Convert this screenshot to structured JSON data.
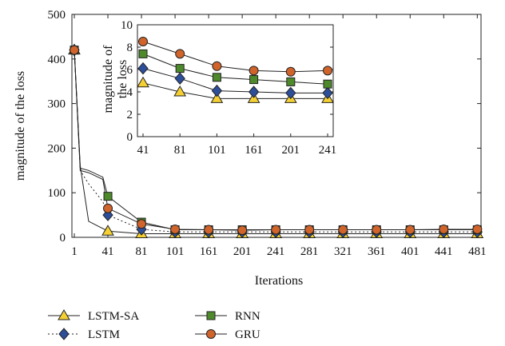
{
  "chart_data": [
    {
      "type": "line",
      "xlabel": "Iterations",
      "ylabel": "magnitude of the loss",
      "ylim": [
        0,
        500
      ],
      "yticks": [
        0,
        100,
        200,
        300,
        400,
        500
      ],
      "xticks": [
        "1",
        "41",
        "81",
        "101",
        "161",
        "201",
        "241",
        "281",
        "321",
        "361",
        "401",
        "441",
        "481"
      ],
      "grid": false,
      "legend_position": "bottom",
      "series": [
        {
          "name": "LSTM-SA",
          "marker": "triangle",
          "color": "#f5d033",
          "line_style": "solid",
          "x": [
            1,
            8,
            18,
            41,
            81,
            101,
            161,
            201,
            241,
            281,
            321,
            361,
            401,
            441,
            481
          ],
          "y": [
            420,
            160,
            36,
            14,
            8,
            8,
            8,
            8,
            8,
            8,
            8,
            8,
            8,
            8,
            8
          ],
          "marker_x": [
            1,
            41,
            81,
            101,
            161,
            201,
            241,
            281,
            321,
            361,
            401,
            441,
            481
          ],
          "marker_y": [
            420,
            14,
            8,
            8,
            8,
            8,
            8,
            8,
            8,
            8,
            8,
            8,
            8
          ]
        },
        {
          "name": "LSTM",
          "marker": "diamond",
          "color": "#2d4f9a",
          "line_style": "dotted",
          "x": [
            1,
            8,
            18,
            35,
            41,
            81,
            101,
            161,
            201,
            241,
            281,
            321,
            361,
            401,
            441,
            481
          ],
          "y": [
            420,
            150,
            120,
            80,
            50,
            18,
            12,
            12,
            12,
            12,
            12,
            12,
            12,
            12,
            12,
            12
          ],
          "marker_x": [
            1,
            41,
            81,
            101,
            161,
            201,
            241,
            281,
            321,
            361,
            401,
            441,
            481
          ],
          "marker_y": [
            420,
            50,
            18,
            12,
            12,
            12,
            12,
            12,
            12,
            12,
            12,
            12,
            12
          ]
        },
        {
          "name": "RNN",
          "marker": "square",
          "color": "#4e8a2c",
          "line_style": "solid",
          "x": [
            1,
            8,
            18,
            35,
            41,
            81,
            101,
            161,
            201,
            241,
            281,
            321,
            361,
            401,
            441,
            481
          ],
          "y": [
            420,
            155,
            150,
            135,
            92,
            34,
            17,
            17,
            17,
            17,
            17,
            17,
            17,
            17,
            17,
            17
          ],
          "marker_x": [
            1,
            41,
            81,
            101,
            161,
            201,
            241,
            281,
            321,
            361,
            401,
            441,
            481
          ],
          "marker_y": [
            420,
            92,
            34,
            17,
            17,
            17,
            17,
            17,
            17,
            17,
            17,
            17,
            17
          ]
        },
        {
          "name": "GRU",
          "marker": "circle",
          "color": "#d0642b",
          "line_style": "solid",
          "x": [
            1,
            8,
            18,
            35,
            41,
            81,
            101,
            161,
            201,
            241,
            281,
            321,
            361,
            401,
            441,
            481
          ],
          "y": [
            420,
            150,
            145,
            130,
            65,
            30,
            18,
            17,
            16,
            17,
            17,
            17,
            17,
            17,
            18,
            18
          ],
          "marker_x": [
            1,
            41,
            81,
            101,
            161,
            201,
            241,
            281,
            321,
            361,
            401,
            441,
            481
          ],
          "marker_y": [
            420,
            65,
            30,
            18,
            17,
            16,
            17,
            17,
            17,
            17,
            17,
            18,
            18
          ]
        }
      ]
    },
    {
      "type": "line",
      "xlabel": "",
      "ylabel": "magnitude of the loss",
      "ylim": [
        0,
        10
      ],
      "yticks": [
        0,
        2,
        4,
        6,
        8,
        10
      ],
      "xticks": [
        "41",
        "81",
        "101",
        "161",
        "201",
        "241"
      ],
      "grid": false,
      "series": [
        {
          "name": "LSTM-SA",
          "marker": "triangle",
          "color": "#f5d033",
          "x": [
            "41",
            "81",
            "101",
            "161",
            "201",
            "241"
          ],
          "y": [
            4.8,
            4.0,
            3.4,
            3.4,
            3.4,
            3.4
          ]
        },
        {
          "name": "LSTM",
          "marker": "diamond",
          "color": "#2d4f9a",
          "x": [
            "41",
            "81",
            "101",
            "161",
            "201",
            "241"
          ],
          "y": [
            6.1,
            5.2,
            4.1,
            4.0,
            3.9,
            3.9
          ]
        },
        {
          "name": "RNN",
          "marker": "square",
          "color": "#4e8a2c",
          "x": [
            "41",
            "81",
            "101",
            "161",
            "201",
            "241"
          ],
          "y": [
            7.4,
            6.1,
            5.3,
            5.1,
            4.9,
            4.7
          ]
        },
        {
          "name": "GRU",
          "marker": "circle",
          "color": "#d0642b",
          "x": [
            "41",
            "81",
            "101",
            "161",
            "201",
            "241"
          ],
          "y": [
            8.5,
            7.4,
            6.3,
            5.9,
            5.8,
            5.9
          ]
        }
      ]
    }
  ]
}
